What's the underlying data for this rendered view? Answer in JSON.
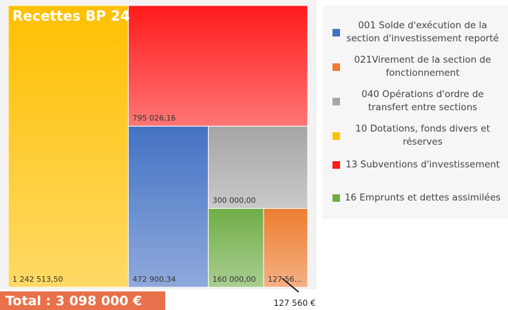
{
  "chart_data": {
    "type": "treemap",
    "title": "Recettes BP 24",
    "total_label": "Total : 3 098 000 €",
    "annotation": "127 560 €",
    "categories": [
      "001 Solde d'exécution de la section d'investissement reporté",
      "021Virement de la section de fonctionnement",
      "040 Opérations d'ordre de transfert entre sections",
      "10 Dotations, fonds divers et réserves",
      "13 Subventions d'investissement",
      "16 Emprunts et dettes assimilées"
    ],
    "values": [
      472900.34,
      127560,
      300000,
      1242513.5,
      795026.16,
      160000
    ],
    "value_labels": [
      "472 900,34",
      "127 56…",
      "300 000,00",
      "1 242 513,50",
      "795 026,16",
      "160 000,00"
    ],
    "colors": [
      "#4472c4",
      "#ed7d31",
      "#a5a5a5",
      "#ffc000",
      "#ff1a1a",
      "#70ad47"
    ],
    "legend": "right"
  }
}
